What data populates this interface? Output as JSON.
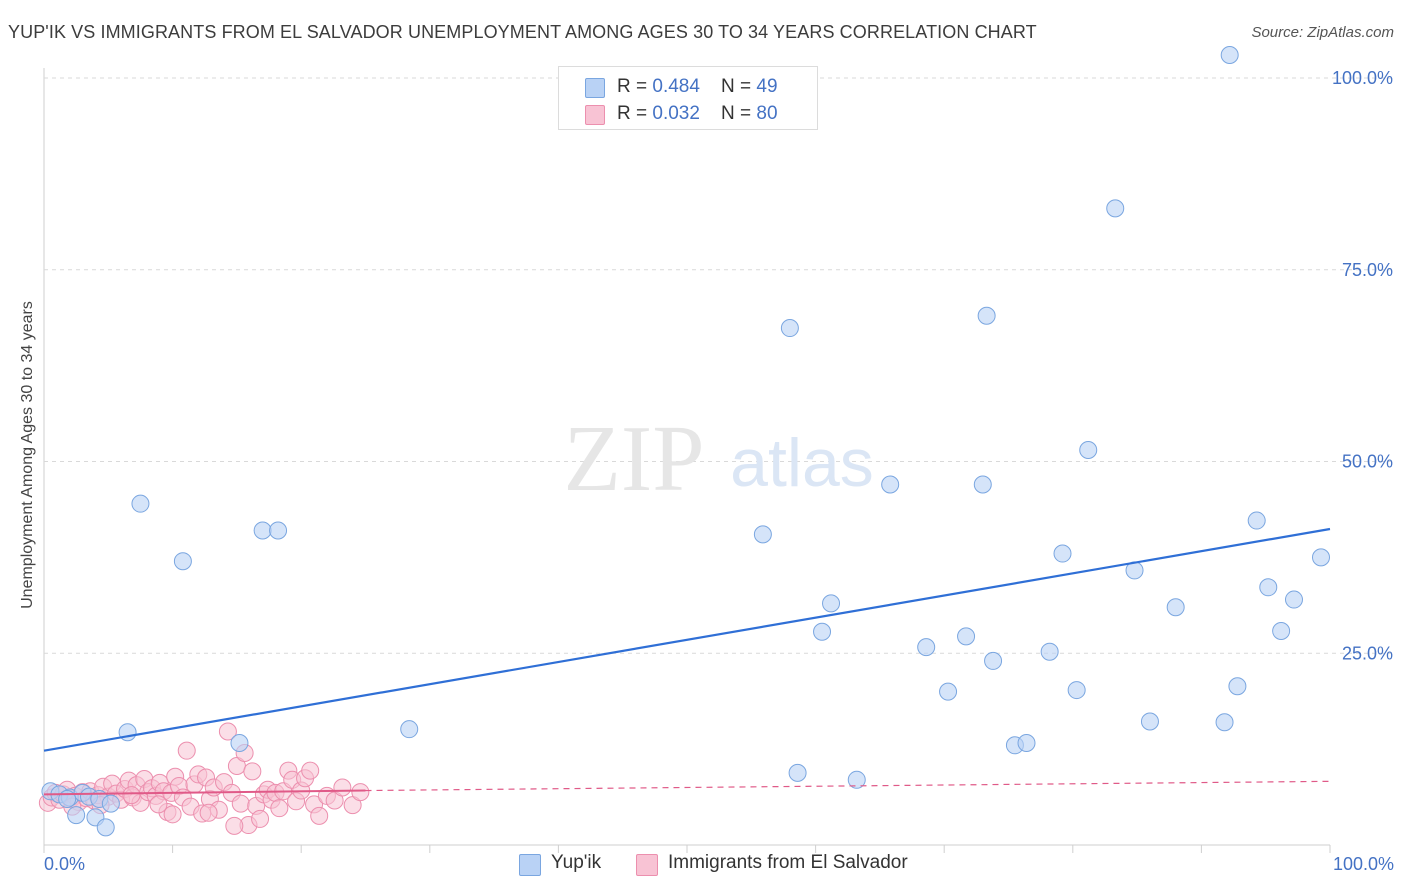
{
  "title": "YUP'IK VS IMMIGRANTS FROM EL SALVADOR UNEMPLOYMENT AMONG AGES 30 TO 34 YEARS CORRELATION CHART",
  "source": "Source: ZipAtlas.com",
  "watermark": {
    "zip": "ZIP",
    "atlas": "atlas"
  },
  "legend": {
    "r_label": "R = ",
    "n_label": "N = ",
    "entries": [
      {
        "r": "0.484",
        "n": "49"
      },
      {
        "r": "0.032",
        "n": "80"
      }
    ]
  },
  "colors": {
    "series1_fill": "#b9d2f5",
    "series1_stroke": "#7aa6e0",
    "series1_line": "#2f6fd6",
    "series2_fill": "#f8c3d4",
    "series2_stroke": "#ec8fae",
    "series2_line": "#e05a88",
    "grid": "#d9d9d9",
    "tick": "#4472c4"
  },
  "chart_data": {
    "type": "scatter",
    "title": "YUP'IK VS IMMIGRANTS FROM EL SALVADOR UNEMPLOYMENT AMONG AGES 30 TO 34 YEARS CORRELATION CHART",
    "xlabel": "",
    "ylabel": "Unemployment Among Ages 30 to 34 years",
    "xlim": [
      0,
      100
    ],
    "ylim": [
      0,
      100
    ],
    "x_tick_labels": [
      "0.0%",
      "100.0%"
    ],
    "y_tick_labels": [
      "25.0%",
      "50.0%",
      "75.0%",
      "100.0%"
    ],
    "y_ticks": [
      25,
      50,
      75,
      100
    ],
    "grid": true,
    "series": [
      {
        "name": "Yup'ik",
        "r": 0.484,
        "n": 49,
        "trend": {
          "x": [
            0,
            100
          ],
          "y": [
            12.3,
            41.2
          ],
          "style": "solid"
        },
        "points": [
          [
            0.5,
            7.0
          ],
          [
            1.2,
            6.6
          ],
          [
            2.0,
            6.2
          ],
          [
            2.5,
            3.9
          ],
          [
            3.0,
            6.8
          ],
          [
            3.5,
            6.3
          ],
          [
            4.0,
            3.6
          ],
          [
            4.3,
            6.0
          ],
          [
            4.8,
            2.3
          ],
          [
            5.2,
            5.4
          ],
          [
            6.5,
            14.7
          ],
          [
            7.5,
            44.5
          ],
          [
            10.8,
            37.0
          ],
          [
            15.2,
            13.3
          ],
          [
            17.0,
            41.0
          ],
          [
            18.2,
            41.0
          ],
          [
            28.4,
            15.1
          ],
          [
            55.9,
            40.5
          ],
          [
            58.6,
            9.4
          ],
          [
            58.0,
            67.4
          ],
          [
            60.5,
            27.8
          ],
          [
            61.2,
            31.5
          ],
          [
            63.2,
            8.5
          ],
          [
            65.8,
            47.0
          ],
          [
            68.6,
            25.8
          ],
          [
            70.3,
            20.0
          ],
          [
            71.7,
            27.2
          ],
          [
            73.0,
            47.0
          ],
          [
            73.3,
            69.0
          ],
          [
            73.8,
            24.0
          ],
          [
            75.5,
            13.0
          ],
          [
            76.4,
            13.3
          ],
          [
            78.2,
            25.2
          ],
          [
            79.2,
            38.0
          ],
          [
            80.3,
            20.2
          ],
          [
            81.2,
            51.5
          ],
          [
            83.3,
            83.0
          ],
          [
            84.8,
            35.8
          ],
          [
            86.0,
            16.1
          ],
          [
            88.0,
            31.0
          ],
          [
            91.8,
            16.0
          ],
          [
            92.2,
            103.0
          ],
          [
            92.8,
            20.7
          ],
          [
            94.3,
            42.3
          ],
          [
            95.2,
            33.6
          ],
          [
            96.2,
            27.9
          ],
          [
            97.2,
            32.0
          ],
          [
            99.3,
            37.5
          ],
          [
            1.8,
            6.0
          ]
        ]
      },
      {
        "name": "Immigrants from El Salvador",
        "r": 0.032,
        "n": 80,
        "trend": {
          "x": [
            0,
            25,
            100
          ],
          "y": [
            6.6,
            7.1,
            8.3
          ],
          "solid_until": 25
        },
        "points": [
          [
            0.3,
            5.5
          ],
          [
            0.6,
            6.2
          ],
          [
            0.9,
            6.8
          ],
          [
            1.2,
            5.9
          ],
          [
            1.5,
            6.6
          ],
          [
            1.8,
            7.2
          ],
          [
            2.1,
            6.0
          ],
          [
            2.4,
            6.4
          ],
          [
            2.7,
            5.6
          ],
          [
            3.0,
            6.9
          ],
          [
            3.3,
            6.1
          ],
          [
            3.6,
            7.0
          ],
          [
            3.9,
            5.8
          ],
          [
            4.2,
            6.5
          ],
          [
            4.6,
            7.6
          ],
          [
            5.0,
            6.3
          ],
          [
            5.3,
            8.0
          ],
          [
            5.6,
            6.7
          ],
          [
            6.0,
            5.9
          ],
          [
            6.3,
            7.3
          ],
          [
            6.6,
            8.4
          ],
          [
            6.9,
            6.2
          ],
          [
            7.2,
            7.8
          ],
          [
            7.5,
            5.5
          ],
          [
            7.8,
            8.6
          ],
          [
            8.1,
            6.9
          ],
          [
            8.4,
            7.4
          ],
          [
            8.7,
            6.4
          ],
          [
            9.0,
            8.1
          ],
          [
            9.3,
            7.0
          ],
          [
            9.6,
            4.3
          ],
          [
            9.9,
            6.8
          ],
          [
            10.2,
            8.9
          ],
          [
            10.5,
            7.7
          ],
          [
            10.8,
            6.2
          ],
          [
            11.1,
            12.3
          ],
          [
            11.4,
            5.0
          ],
          [
            11.7,
            7.9
          ],
          [
            12.0,
            9.2
          ],
          [
            12.3,
            4.1
          ],
          [
            12.6,
            8.8
          ],
          [
            12.9,
            6.0
          ],
          [
            13.2,
            7.5
          ],
          [
            13.6,
            4.6
          ],
          [
            14.0,
            8.2
          ],
          [
            14.3,
            14.8
          ],
          [
            14.6,
            6.8
          ],
          [
            15.0,
            10.3
          ],
          [
            15.3,
            5.4
          ],
          [
            15.6,
            12.0
          ],
          [
            15.9,
            2.6
          ],
          [
            16.2,
            9.6
          ],
          [
            16.5,
            5.1
          ],
          [
            16.8,
            3.4
          ],
          [
            17.1,
            6.6
          ],
          [
            17.4,
            7.2
          ],
          [
            17.7,
            5.9
          ],
          [
            18.0,
            6.8
          ],
          [
            18.3,
            4.8
          ],
          [
            18.6,
            7.0
          ],
          [
            19.0,
            9.7
          ],
          [
            19.3,
            8.5
          ],
          [
            19.6,
            5.7
          ],
          [
            20.0,
            7.1
          ],
          [
            20.3,
            8.7
          ],
          [
            20.7,
            9.7
          ],
          [
            21.0,
            5.3
          ],
          [
            21.4,
            3.8
          ],
          [
            22.0,
            6.4
          ],
          [
            22.6,
            5.8
          ],
          [
            23.2,
            7.5
          ],
          [
            24.0,
            5.2
          ],
          [
            24.6,
            6.9
          ],
          [
            2.2,
            5.0
          ],
          [
            4.4,
            5.2
          ],
          [
            6.8,
            6.5
          ],
          [
            8.9,
            5.3
          ],
          [
            10.0,
            4.0
          ],
          [
            12.8,
            4.2
          ],
          [
            14.8,
            2.5
          ]
        ]
      }
    ]
  }
}
